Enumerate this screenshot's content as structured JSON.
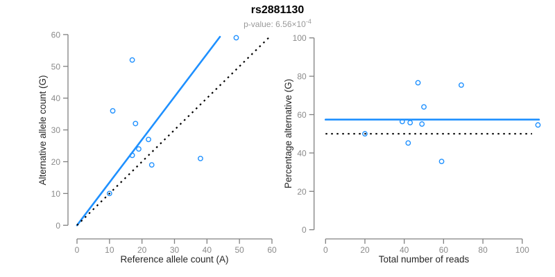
{
  "header": {
    "title": "rs2881130",
    "subtitle_prefix": "p-value: 6.56×10",
    "subtitle_exponent": "-4"
  },
  "colors": {
    "accent_blue": "#1E90FF",
    "line_black": "#000000",
    "axis_gray": "#808080",
    "tick_label_gray": "#8a8a8a",
    "axis_title_dark": "#262626",
    "subtitle_gray": "#999999",
    "background": "#ffffff"
  },
  "chart_data": [
    {
      "type": "scatter",
      "title": "",
      "xlabel": "Reference allele count (A)",
      "ylabel": "Alternative allele count (G)",
      "xlim": [
        0,
        60
      ],
      "ylim": [
        0,
        60
      ],
      "xticks": [
        0,
        10,
        20,
        30,
        40,
        50,
        60
      ],
      "yticks": [
        0,
        10,
        20,
        30,
        40,
        50,
        60
      ],
      "grid": false,
      "legend": "none",
      "points": [
        [
          10,
          10
        ],
        [
          11,
          36
        ],
        [
          17,
          52
        ],
        [
          17,
          22
        ],
        [
          18,
          32
        ],
        [
          19,
          24
        ],
        [
          22,
          27
        ],
        [
          23,
          19
        ],
        [
          38,
          21
        ],
        [
          49,
          59
        ]
      ],
      "lines": [
        {
          "name": "fitted-ratio-line",
          "style": "solid",
          "color": "#1E90FF",
          "from": [
            0,
            0
          ],
          "to": [
            44,
            59.3
          ]
        },
        {
          "name": "identity-line",
          "style": "dotted",
          "color": "#000000",
          "from": [
            0,
            0
          ],
          "to": [
            59.3,
            59.3
          ]
        }
      ]
    },
    {
      "type": "scatter",
      "title": "",
      "xlabel": "Total number of reads",
      "ylabel": "Percentage alternative (G)",
      "xlim": [
        0,
        108
      ],
      "ylim": [
        0,
        100
      ],
      "xticks": [
        0,
        20,
        40,
        60,
        80,
        100
      ],
      "yticks": [
        0,
        20,
        40,
        60,
        80,
        100
      ],
      "grid": false,
      "legend": "none",
      "points": [
        [
          20,
          50.0
        ],
        [
          39,
          56.4
        ],
        [
          42,
          45.2
        ],
        [
          43,
          55.8
        ],
        [
          47,
          76.6
        ],
        [
          49,
          55.1
        ],
        [
          50,
          64.0
        ],
        [
          59,
          35.6
        ],
        [
          69,
          75.4
        ],
        [
          108,
          54.6
        ]
      ],
      "lines": [
        {
          "name": "mean-percentage-line",
          "style": "solid",
          "color": "#1E90FF",
          "from": [
            0,
            57.4
          ],
          "to": [
            108.5,
            57.4
          ]
        },
        {
          "name": "fifty-percent-line",
          "style": "dotted",
          "color": "#000000",
          "from": [
            0,
            50
          ],
          "to": [
            105,
            50
          ]
        }
      ]
    }
  ]
}
